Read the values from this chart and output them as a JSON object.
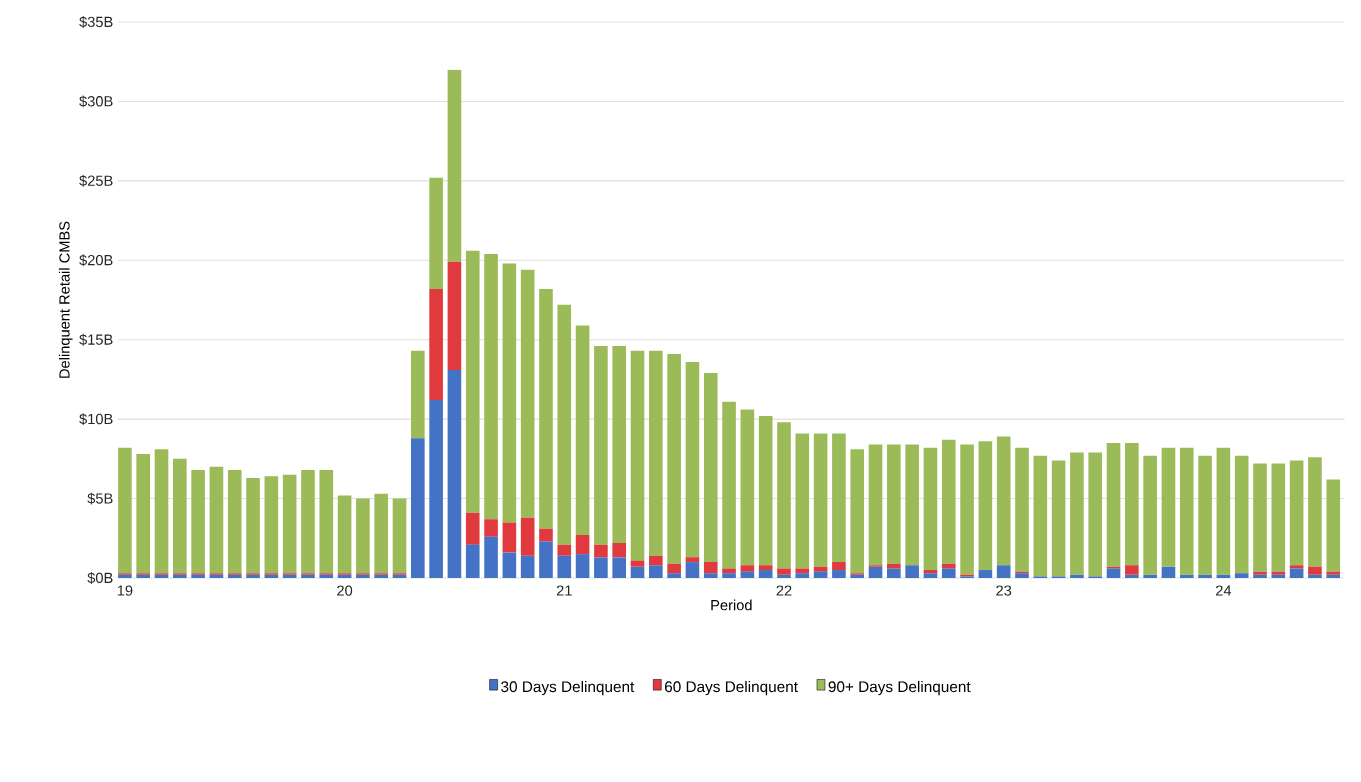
{
  "chart_data": {
    "type": "bar",
    "stacked": true,
    "xlabel": "Period",
    "ylabel": "Delinquent Retail CMBS",
    "x": [
      "2019-01",
      "2019-02",
      "2019-03",
      "2019-04",
      "2019-05",
      "2019-06",
      "2019-07",
      "2019-08",
      "2019-09",
      "2019-10",
      "2019-11",
      "2019-12",
      "2020-01",
      "2020-02",
      "2020-03",
      "2020-04",
      "2020-05",
      "2020-06",
      "2020-07",
      "2020-08",
      "2020-09",
      "2020-10",
      "2020-11",
      "2020-12",
      "2021-01",
      "2021-02",
      "2021-03",
      "2021-04",
      "2021-05",
      "2021-06",
      "2021-07",
      "2021-08",
      "2021-09",
      "2021-10",
      "2021-11",
      "2021-12",
      "2022-01",
      "2022-02",
      "2022-03",
      "2022-04",
      "2022-05",
      "2022-06",
      "2022-07",
      "2022-08",
      "2022-09",
      "2022-10",
      "2022-11",
      "2022-12",
      "2023-01",
      "2023-02",
      "2023-03",
      "2023-04",
      "2023-05",
      "2023-06",
      "2023-07",
      "2023-08",
      "2023-09",
      "2023-10",
      "2023-11",
      "2023-12",
      "2024-01",
      "2024-02",
      "2024-03",
      "2024-04",
      "2024-05",
      "2024-06",
      "2024-07"
    ],
    "series": [
      {
        "name": "30 Days Delinquent",
        "color": "#4472c4",
        "values": [
          0.2,
          0.2,
          0.2,
          0.2,
          0.2,
          0.2,
          0.2,
          0.2,
          0.2,
          0.2,
          0.2,
          0.2,
          0.2,
          0.2,
          0.2,
          0.2,
          8.8,
          11.2,
          13.1,
          2.1,
          2.6,
          1.6,
          1.4,
          2.3,
          1.4,
          1.5,
          1.3,
          1.3,
          0.7,
          0.8,
          0.3,
          1.0,
          0.3,
          0.3,
          0.4,
          0.5,
          0.2,
          0.3,
          0.4,
          0.5,
          0.2,
          0.7,
          0.6,
          0.8,
          0.3,
          0.6,
          0.1,
          0.5,
          0.8,
          0.3,
          0.1,
          0.1,
          0.2,
          0.1,
          0.6,
          0.2,
          0.2,
          0.7,
          0.2,
          0.2,
          0.2,
          0.3,
          0.2,
          0.2,
          0.6,
          0.2,
          0.2
        ]
      },
      {
        "name": "60 Days Delinquent",
        "color": "#e0393e",
        "values": [
          0.1,
          0.1,
          0.1,
          0.1,
          0.1,
          0.1,
          0.1,
          0.1,
          0.1,
          0.1,
          0.1,
          0.1,
          0.1,
          0.1,
          0.1,
          0.1,
          0,
          7.0,
          6.8,
          2.0,
          1.1,
          1.9,
          2.4,
          0.8,
          0.7,
          1.2,
          0.8,
          0.9,
          0.4,
          0.6,
          0.6,
          0.3,
          0.7,
          0.3,
          0.4,
          0.3,
          0.4,
          0.3,
          0.3,
          0.5,
          0.1,
          0.1,
          0.3,
          0,
          0.2,
          0.3,
          0.1,
          0,
          0,
          0.1,
          0,
          0,
          0,
          0,
          0.1,
          0.6,
          0,
          0,
          0,
          0,
          0,
          0,
          0.2,
          0.2,
          0.2,
          0.5,
          0.2
        ]
      },
      {
        "name": "90+ Days Delinquent",
        "color": "#9bbb59",
        "values": [
          7.9,
          7.5,
          7.8,
          7.2,
          6.5,
          6.7,
          6.5,
          6.0,
          6.1,
          6.2,
          6.5,
          6.5,
          4.9,
          4.7,
          5.0,
          4.7,
          5.5,
          7.0,
          12.1,
          16.5,
          16.7,
          16.3,
          15.6,
          15.1,
          15.1,
          13.2,
          12.5,
          12.4,
          13.2,
          12.9,
          13.2,
          12.3,
          11.9,
          10.5,
          9.8,
          9.4,
          9.2,
          8.5,
          8.4,
          8.1,
          7.8,
          7.6,
          7.5,
          7.6,
          7.7,
          7.8,
          8.2,
          8.1,
          8.1,
          7.8,
          7.6,
          7.3,
          7.7,
          7.8,
          7.8,
          7.7,
          7.5,
          7.5,
          8.0,
          7.5,
          8.0,
          7.4,
          6.8,
          6.8,
          6.6,
          6.9,
          5.8
        ]
      }
    ],
    "xlim": [
      "2018-12-20",
      "2024-07-20"
    ],
    "xticks": [
      {
        "value": "2019-01",
        "label": "19"
      },
      {
        "value": "2020-01",
        "label": "20"
      },
      {
        "value": "2021-01",
        "label": "21"
      },
      {
        "value": "2022-01",
        "label": "22"
      },
      {
        "value": "2023-01",
        "label": "23"
      },
      {
        "value": "2024-01",
        "label": "24"
      }
    ],
    "ylim": [
      0,
      35
    ],
    "yticks": [
      {
        "value": 0,
        "label": "$0B"
      },
      {
        "value": 5,
        "label": "$5B"
      },
      {
        "value": 10,
        "label": "$10B"
      },
      {
        "value": 15,
        "label": "$15B"
      },
      {
        "value": 20,
        "label": "$20B"
      },
      {
        "value": 25,
        "label": "$25B"
      },
      {
        "value": 30,
        "label": "$30B"
      },
      {
        "value": 35,
        "label": "$35B"
      }
    ],
    "grid": "y",
    "legend": "bottom"
  }
}
